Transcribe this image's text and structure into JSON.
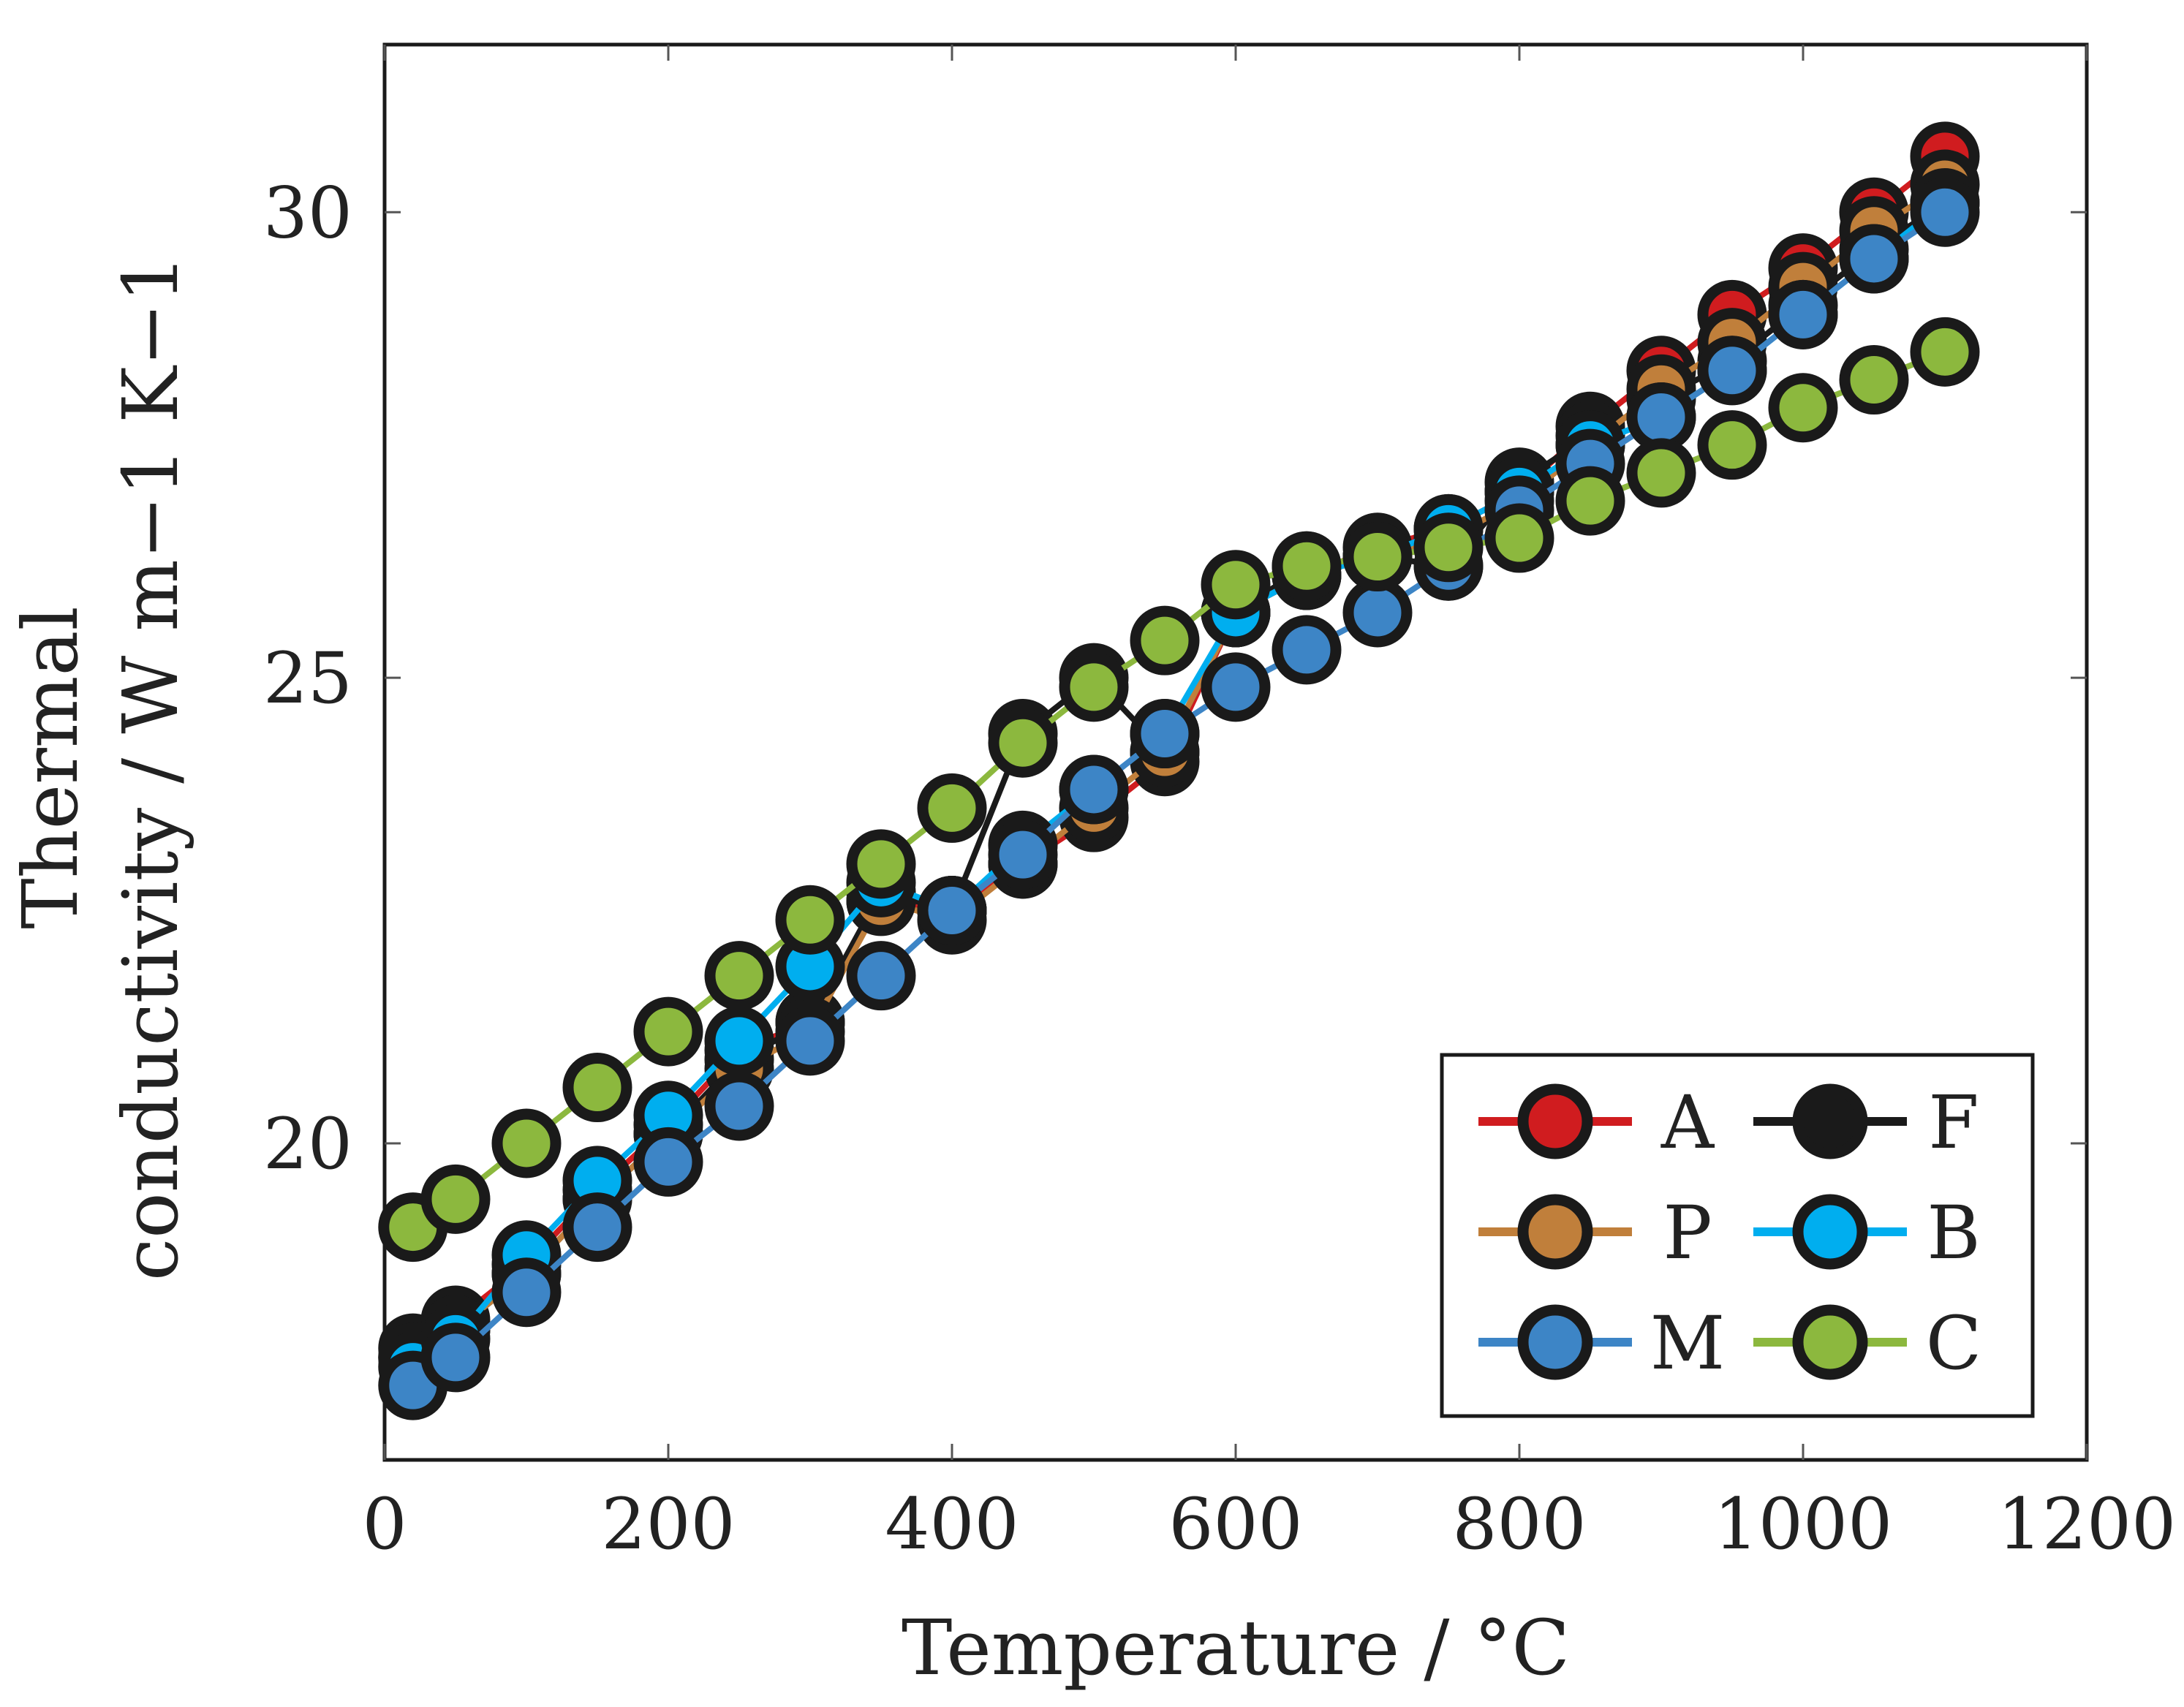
{
  "chart_data": {
    "type": "line",
    "title": "",
    "xlabel": "Temperature / °C",
    "ylabel_lines": [
      "Thermal",
      "conductivity / W m−1 K−1"
    ],
    "xlim": [
      0,
      1200
    ],
    "ylim": [
      16.6,
      31.8
    ],
    "xticks": [
      0,
      200,
      400,
      600,
      800,
      1000,
      1200
    ],
    "xtick_labels": [
      "0",
      "200",
      "400",
      "600",
      "800",
      "1000",
      "1200"
    ],
    "yticks": [
      20,
      25,
      30
    ],
    "ytick_labels": [
      "20",
      "25",
      "30"
    ],
    "grid": false,
    "legend_position": "bottom-right",
    "marker_edge_color": "#1a1a1a",
    "series": [
      {
        "name": "A",
        "color": "#d01c1f",
        "x": [
          20,
          50,
          100,
          150,
          200,
          250,
          300,
          350,
          400,
          450,
          500,
          550,
          600,
          650,
          700,
          750,
          800,
          850,
          900,
          950,
          1000,
          1050,
          1100
        ],
        "y": [
          17.8,
          18.1,
          18.7,
          19.5,
          20.2,
          21.0,
          21.3,
          22.6,
          22.5,
          23.0,
          23.5,
          24.1,
          25.7,
          26.1,
          26.4,
          26.6,
          27.0,
          27.7,
          28.3,
          28.9,
          29.4,
          30.0,
          30.6
        ]
      },
      {
        "name": "F",
        "color": "#1a1a1a",
        "x": [
          20,
          50,
          100,
          150,
          200,
          250,
          300,
          350,
          400,
          450,
          500,
          550,
          600,
          650,
          700,
          750,
          800,
          850,
          900,
          950,
          1000,
          1050,
          1100
        ],
        "y": [
          17.7,
          18.0,
          18.6,
          19.4,
          20.1,
          20.9,
          21.3,
          22.7,
          22.5,
          24.4,
          25.0,
          24.2,
          25.7,
          26.2,
          26.3,
          26.2,
          27.1,
          27.6,
          28.0,
          28.4,
          29.0,
          29.6,
          30.1
        ]
      },
      {
        "name": "P",
        "color": "#c07f3b",
        "x": [
          20,
          50,
          100,
          150,
          200,
          250,
          300,
          350,
          400,
          450,
          500,
          550,
          600,
          650,
          700,
          750,
          800,
          850,
          900,
          950,
          1000,
          1050,
          1100
        ],
        "y": [
          17.7,
          18.0,
          18.6,
          19.4,
          20.1,
          20.8,
          21.2,
          22.6,
          22.4,
          23.0,
          23.6,
          24.2,
          25.7,
          26.1,
          26.3,
          26.5,
          26.9,
          27.5,
          28.1,
          28.6,
          29.2,
          29.8,
          30.3
        ]
      },
      {
        "name": "B",
        "color": "#00aeef",
        "x": [
          20,
          50,
          100,
          150,
          200,
          250,
          300,
          350,
          400,
          450,
          500,
          550,
          600,
          650,
          700,
          750,
          800,
          850,
          900,
          950,
          1000,
          1050,
          1100
        ],
        "y": [
          17.6,
          17.9,
          18.8,
          19.6,
          20.3,
          21.1,
          21.9,
          22.8,
          22.5,
          23.2,
          23.8,
          24.4,
          25.7,
          26.1,
          26.3,
          26.6,
          27.0,
          27.5,
          27.8,
          28.3,
          28.9,
          29.5,
          30.1
        ]
      },
      {
        "name": "M",
        "color": "#3d85c6",
        "x": [
          20,
          50,
          100,
          150,
          200,
          250,
          300,
          350,
          400,
          450,
          500,
          550,
          600,
          650,
          700,
          750,
          800,
          850,
          900,
          950,
          1000,
          1050,
          1100
        ],
        "y": [
          17.4,
          17.7,
          18.4,
          19.1,
          19.8,
          20.4,
          21.1,
          21.8,
          22.5,
          23.1,
          23.8,
          24.4,
          24.9,
          25.3,
          25.7,
          26.2,
          26.8,
          27.3,
          27.8,
          28.3,
          28.9,
          29.5,
          30.0
        ]
      },
      {
        "name": "C",
        "color": "#8cb83e",
        "x": [
          20,
          50,
          100,
          150,
          200,
          250,
          300,
          350,
          400,
          450,
          500,
          550,
          600,
          650,
          700,
          750,
          800,
          850,
          900,
          950,
          1000,
          1050,
          1100
        ],
        "y": [
          19.1,
          19.4,
          20.0,
          20.6,
          21.2,
          21.8,
          22.4,
          23.0,
          23.6,
          24.3,
          24.9,
          25.4,
          26.0,
          26.2,
          26.3,
          26.4,
          26.5,
          26.9,
          27.2,
          27.5,
          27.9,
          28.2,
          28.5
        ]
      }
    ]
  }
}
